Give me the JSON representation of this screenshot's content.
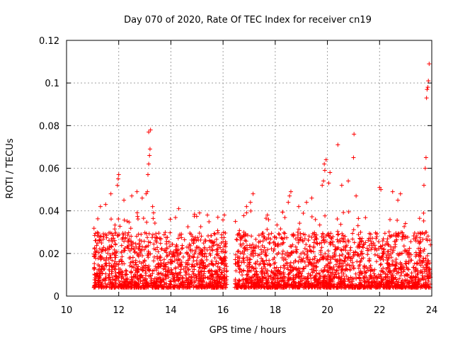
{
  "chart_data": {
    "type": "scatter",
    "title": "Day 070 of 2020, Rate Of TEC Index for receiver cn19",
    "xlabel": "GPS time / hours",
    "ylabel": "ROTI / TECUs",
    "xlim": [
      10,
      24
    ],
    "ylim": [
      0,
      0.12
    ],
    "x_ticks": [
      10,
      12,
      14,
      16,
      18,
      20,
      22,
      24
    ],
    "y_ticks": [
      0,
      0.02,
      0.04,
      0.06,
      0.08,
      0.1,
      0.12
    ],
    "x_tick_labels": [
      "10",
      "12",
      "14",
      "16",
      "18",
      "20",
      "22",
      "24"
    ],
    "y_tick_labels": [
      "0",
      "0.02",
      "0.04",
      "0.06",
      "0.08",
      "0.1",
      "0.12"
    ],
    "grid": true,
    "marker": "+",
    "color": "#ff0000",
    "series": [
      {
        "name": "ROTI",
        "dense_segments": [
          {
            "x_start": 11.05,
            "x_end": 16.15,
            "typical_max": 0.03,
            "floor": 0.004
          },
          {
            "x_start": 16.45,
            "x_end": 23.95,
            "typical_max": 0.03,
            "floor": 0.004
          }
        ],
        "points": [
          {
            "x": 11.3,
            "y": 0.042
          },
          {
            "x": 11.5,
            "y": 0.043
          },
          {
            "x": 11.7,
            "y": 0.048
          },
          {
            "x": 11.95,
            "y": 0.052
          },
          {
            "x": 11.98,
            "y": 0.055
          },
          {
            "x": 12.0,
            "y": 0.057
          },
          {
            "x": 12.2,
            "y": 0.045
          },
          {
            "x": 12.5,
            "y": 0.047
          },
          {
            "x": 12.7,
            "y": 0.049
          },
          {
            "x": 12.9,
            "y": 0.046
          },
          {
            "x": 13.05,
            "y": 0.048
          },
          {
            "x": 13.1,
            "y": 0.049
          },
          {
            "x": 13.12,
            "y": 0.057
          },
          {
            "x": 13.15,
            "y": 0.062
          },
          {
            "x": 13.18,
            "y": 0.066
          },
          {
            "x": 13.2,
            "y": 0.069
          },
          {
            "x": 13.15,
            "y": 0.077
          },
          {
            "x": 13.22,
            "y": 0.078
          },
          {
            "x": 13.3,
            "y": 0.042
          },
          {
            "x": 14.3,
            "y": 0.041
          },
          {
            "x": 15.1,
            "y": 0.039
          },
          {
            "x": 15.4,
            "y": 0.038
          },
          {
            "x": 15.8,
            "y": 0.037
          },
          {
            "x": 16.05,
            "y": 0.038
          },
          {
            "x": 16.9,
            "y": 0.042
          },
          {
            "x": 17.05,
            "y": 0.044
          },
          {
            "x": 17.15,
            "y": 0.048
          },
          {
            "x": 17.7,
            "y": 0.038
          },
          {
            "x": 18.5,
            "y": 0.044
          },
          {
            "x": 18.55,
            "y": 0.047
          },
          {
            "x": 18.6,
            "y": 0.049
          },
          {
            "x": 18.9,
            "y": 0.042
          },
          {
            "x": 19.2,
            "y": 0.044
          },
          {
            "x": 19.4,
            "y": 0.046
          },
          {
            "x": 19.8,
            "y": 0.052
          },
          {
            "x": 19.85,
            "y": 0.054
          },
          {
            "x": 19.9,
            "y": 0.059
          },
          {
            "x": 19.88,
            "y": 0.062
          },
          {
            "x": 19.95,
            "y": 0.064
          },
          {
            "x": 20.1,
            "y": 0.058
          },
          {
            "x": 20.05,
            "y": 0.053
          },
          {
            "x": 20.4,
            "y": 0.071
          },
          {
            "x": 20.55,
            "y": 0.052
          },
          {
            "x": 20.8,
            "y": 0.054
          },
          {
            "x": 21.0,
            "y": 0.065
          },
          {
            "x": 21.02,
            "y": 0.076
          },
          {
            "x": 21.1,
            "y": 0.047
          },
          {
            "x": 22.0,
            "y": 0.051
          },
          {
            "x": 22.05,
            "y": 0.05
          },
          {
            "x": 22.5,
            "y": 0.049
          },
          {
            "x": 22.7,
            "y": 0.045
          },
          {
            "x": 22.8,
            "y": 0.048
          },
          {
            "x": 23.7,
            "y": 0.052
          },
          {
            "x": 23.75,
            "y": 0.06
          },
          {
            "x": 23.78,
            "y": 0.065
          },
          {
            "x": 23.8,
            "y": 0.093
          },
          {
            "x": 23.82,
            "y": 0.097
          },
          {
            "x": 23.85,
            "y": 0.098
          },
          {
            "x": 23.87,
            "y": 0.101
          },
          {
            "x": 23.9,
            "y": 0.109
          }
        ]
      }
    ]
  }
}
